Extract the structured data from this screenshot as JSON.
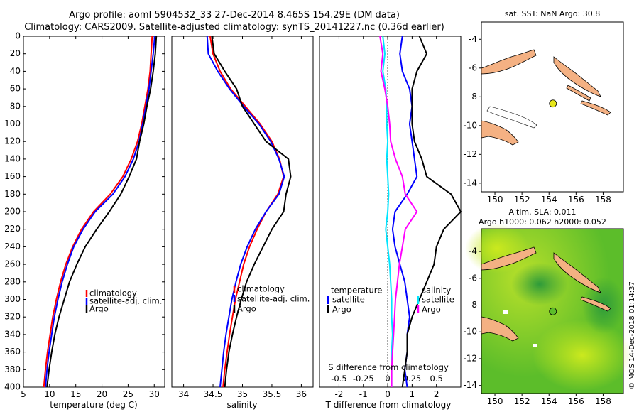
{
  "title_lines": [
    "Argo profile: aoml 5904532_33 27-Dec-2014 8.465S 154.29E (DM data)",
    "Climatology: CARS2009. Satellite-adjusted climatology: synTS_20141227.nc (0.36d earlier)"
  ],
  "colors": {
    "climatology": "#ff0000",
    "satellite": "#0000ff",
    "argo": "#000000",
    "s_clim": "#ff00ff",
    "s_sat": "#00e5ff",
    "land": "#f4b183",
    "float": "#e6e61a"
  },
  "depth_ticks": [
    "0",
    "20",
    "40",
    "60",
    "80",
    "100",
    "120",
    "140",
    "160",
    "180",
    "200",
    "220",
    "240",
    "260",
    "280",
    "300",
    "320",
    "340",
    "360",
    "380",
    "400"
  ],
  "chart_data": [
    {
      "type": "line",
      "name": "temperature",
      "xlabel": "temperature (deg C)",
      "ylabel": "",
      "xlim": [
        5,
        32
      ],
      "ylim": [
        400,
        0
      ],
      "xticks": [
        "5",
        "10",
        "15",
        "20",
        "25",
        "30"
      ],
      "legend": [
        "climatology",
        "satellite-adj. clim.",
        "Argo"
      ],
      "series": [
        {
          "name": "climatology",
          "depth": [
            0,
            20,
            40,
            60,
            80,
            100,
            120,
            140,
            160,
            180,
            200,
            220,
            240,
            260,
            280,
            300,
            320,
            340,
            360,
            380,
            400
          ],
          "values": [
            29.6,
            29.4,
            29.2,
            28.8,
            28.2,
            27.6,
            26.8,
            25.6,
            24.0,
            21.6,
            18.4,
            16.1,
            14.4,
            13.1,
            12.1,
            11.3,
            10.6,
            10.1,
            9.6,
            9.2,
            8.9
          ]
        },
        {
          "name": "satellite-adj. clim.",
          "depth": [
            0,
            20,
            40,
            60,
            80,
            100,
            120,
            140,
            160,
            180,
            200,
            220,
            240,
            260,
            280,
            300,
            320,
            340,
            360,
            380,
            400
          ],
          "values": [
            30.1,
            29.8,
            29.4,
            29.0,
            28.4,
            27.8,
            27.1,
            26.0,
            24.4,
            22.1,
            18.7,
            16.4,
            14.6,
            13.4,
            12.4,
            11.6,
            10.9,
            10.4,
            9.9,
            9.5,
            9.2
          ]
        },
        {
          "name": "Argo",
          "depth": [
            0,
            20,
            40,
            60,
            80,
            100,
            120,
            140,
            160,
            180,
            200,
            220,
            240,
            260,
            280,
            300,
            320,
            340,
            360,
            380,
            400
          ],
          "values": [
            30.4,
            30.2,
            29.8,
            29.3,
            28.6,
            28.0,
            27.2,
            26.6,
            25.2,
            23.6,
            21.4,
            19.0,
            16.8,
            15.2,
            13.8,
            12.8,
            11.8,
            11.0,
            10.4,
            9.9,
            9.5
          ]
        }
      ]
    },
    {
      "type": "line",
      "name": "salinity",
      "xlabel": "salinity",
      "ylabel": "",
      "xlim": [
        33.8,
        36.2
      ],
      "ylim": [
        400,
        0
      ],
      "xticks": [
        "34",
        "34.5",
        "35",
        "35.5",
        "36"
      ],
      "legend": [
        "climatology",
        "satellite-adj. clim.",
        "Argo"
      ],
      "series": [
        {
          "name": "climatology",
          "depth": [
            0,
            20,
            40,
            60,
            80,
            100,
            120,
            140,
            160,
            180,
            200,
            220,
            240,
            260,
            280,
            300,
            320,
            340,
            360,
            380,
            400
          ],
          "values": [
            34.45,
            34.5,
            34.62,
            34.8,
            35.05,
            35.3,
            35.5,
            35.63,
            35.7,
            35.6,
            35.4,
            35.25,
            35.12,
            35.02,
            34.95,
            34.88,
            34.83,
            34.78,
            34.74,
            34.7,
            34.67
          ]
        },
        {
          "name": "satellite-adj. clim.",
          "depth": [
            0,
            20,
            40,
            60,
            80,
            100,
            120,
            140,
            160,
            180,
            200,
            220,
            240,
            260,
            280,
            300,
            320,
            340,
            360,
            380,
            400
          ],
          "values": [
            34.4,
            34.42,
            34.58,
            34.78,
            35.02,
            35.28,
            35.48,
            35.62,
            35.71,
            35.62,
            35.4,
            35.22,
            35.08,
            34.97,
            34.89,
            34.82,
            34.77,
            34.72,
            34.68,
            34.65,
            34.62
          ]
        },
        {
          "name": "Argo",
          "depth": [
            0,
            20,
            40,
            60,
            80,
            100,
            120,
            140,
            160,
            180,
            200,
            220,
            240,
            260,
            280,
            300,
            320,
            340,
            360,
            380,
            400
          ],
          "values": [
            34.48,
            34.52,
            34.7,
            34.9,
            35.0,
            35.2,
            35.4,
            35.78,
            35.82,
            35.74,
            35.7,
            35.5,
            35.35,
            35.2,
            35.07,
            34.98,
            34.9,
            34.83,
            34.77,
            34.73,
            34.7
          ]
        }
      ]
    },
    {
      "type": "line",
      "name": "difference",
      "xlabel": "T difference from climatology",
      "x2label": "S difference from climatology",
      "xlim": [
        -2.8,
        3.0
      ],
      "x2lim": [
        -0.7,
        0.75
      ],
      "ylim": [
        400,
        0
      ],
      "xticks": [
        "-2",
        "-1",
        "0",
        "1",
        "2"
      ],
      "x2ticks": [
        "-0.5",
        "-0.25",
        "0",
        "0.25",
        "0.5"
      ],
      "legend_left": [
        "temperature",
        "satellite",
        "Argo"
      ],
      "legend_right": [
        "salinity",
        "satellite",
        "Argo"
      ],
      "series": [
        {
          "name": "T satellite",
          "axis": "T",
          "depth": [
            0,
            20,
            40,
            60,
            80,
            100,
            120,
            140,
            160,
            180,
            200,
            220,
            240,
            260,
            280,
            300,
            320,
            340,
            360,
            380,
            400
          ],
          "values": [
            0.6,
            0.5,
            0.6,
            0.9,
            1.0,
            0.9,
            1.0,
            1.1,
            1.2,
            0.8,
            0.3,
            0.2,
            0.3,
            0.5,
            0.7,
            0.8,
            0.9,
            0.8,
            0.8,
            0.7,
            0.8
          ]
        },
        {
          "name": "T Argo",
          "axis": "T",
          "depth": [
            0,
            20,
            40,
            60,
            80,
            100,
            120,
            140,
            160,
            180,
            200,
            220,
            240,
            260,
            280,
            300,
            320,
            340,
            360,
            380,
            400
          ],
          "values": [
            1.3,
            1.6,
            1.2,
            1.0,
            1.0,
            1.0,
            1.1,
            1.4,
            1.6,
            2.6,
            3.0,
            2.3,
            2.0,
            1.9,
            1.6,
            1.3,
            1.0,
            0.8,
            0.8,
            0.7,
            0.6
          ]
        },
        {
          "name": "S satellite",
          "axis": "S",
          "depth": [
            0,
            20,
            40,
            60,
            80,
            100,
            120,
            140,
            160,
            180,
            200,
            220,
            240,
            260,
            280,
            300,
            320,
            340,
            360,
            380,
            400
          ],
          "values": [
            -0.05,
            -0.03,
            -0.05,
            -0.02,
            -0.01,
            -0.01,
            0.0,
            -0.01,
            0.0,
            0.01,
            0.0,
            -0.02,
            0.0,
            0.02,
            0.03,
            0.04,
            0.04,
            0.05,
            0.04,
            0.04,
            0.04
          ]
        },
        {
          "name": "S Argo",
          "axis": "S",
          "depth": [
            0,
            20,
            40,
            60,
            80,
            100,
            120,
            140,
            160,
            180,
            200,
            220,
            240,
            260,
            280,
            300,
            320,
            340,
            360,
            380,
            400
          ],
          "values": [
            -0.08,
            -0.05,
            -0.07,
            -0.03,
            0.0,
            0.02,
            0.03,
            0.08,
            0.15,
            0.18,
            0.3,
            0.18,
            0.15,
            0.12,
            0.1,
            0.08,
            0.07,
            0.06,
            0.05,
            0.04,
            0.04
          ]
        }
      ]
    }
  ],
  "maps": {
    "top": {
      "title": "sat. SST: NaN Argo: 30.8",
      "yticks": [
        "-4",
        "-6",
        "-8",
        "-10",
        "-12",
        "-14"
      ]
    },
    "bottom": {
      "title_lines": [
        "Altim. SLA: 0.011",
        "Argo h1000: 0.062 h2000: 0.052"
      ],
      "yticks": [
        "-4",
        "-6",
        "-8",
        "-10",
        "-12",
        "-14"
      ]
    },
    "xticks": [
      "150",
      "152",
      "154",
      "156",
      "158"
    ],
    "float_lon": 154.29,
    "float_lat": -8.465
  },
  "credit": "©IMOS 14-Dec-2018 01:14:37"
}
